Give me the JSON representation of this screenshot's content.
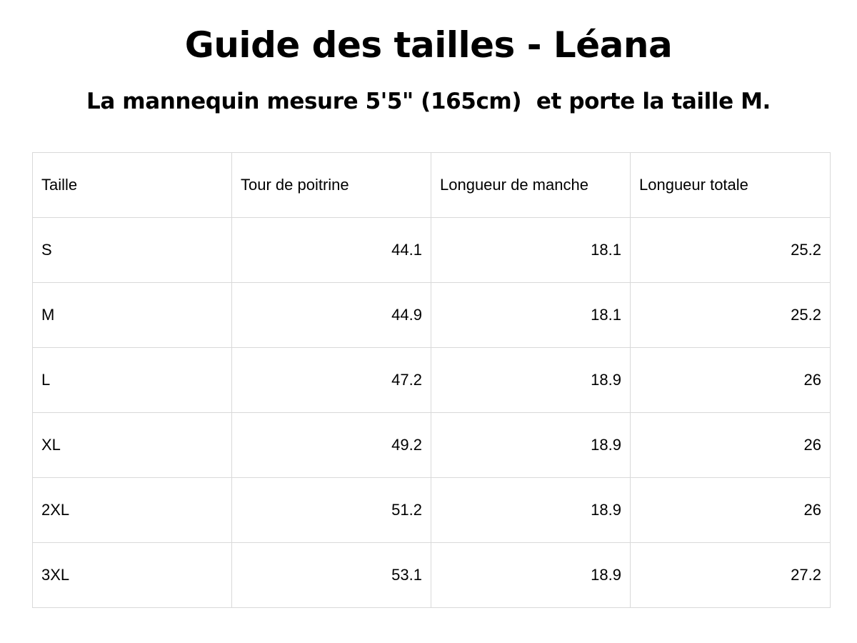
{
  "title": "Guide des tailles - Léana",
  "subtitle": "La mannequin mesure 5'5\" (165cm)  et porte la taille M.",
  "table": {
    "headers": [
      "Taille",
      "Tour de poitrine",
      "Longueur de manche",
      "Longueur totale"
    ],
    "rows": [
      [
        "S",
        "44.1",
        "18.1",
        "25.2"
      ],
      [
        "M",
        "44.9",
        "18.1",
        "25.2"
      ],
      [
        "L",
        "47.2",
        "18.9",
        "26"
      ],
      [
        "XL",
        "49.2",
        "18.9",
        "26"
      ],
      [
        "2XL",
        "51.2",
        "18.9",
        "26"
      ],
      [
        "3XL",
        "53.1",
        "18.9",
        "27.2"
      ]
    ]
  },
  "colors": {
    "text": "#000000",
    "border": "#d9d9d9",
    "background": "#ffffff"
  }
}
